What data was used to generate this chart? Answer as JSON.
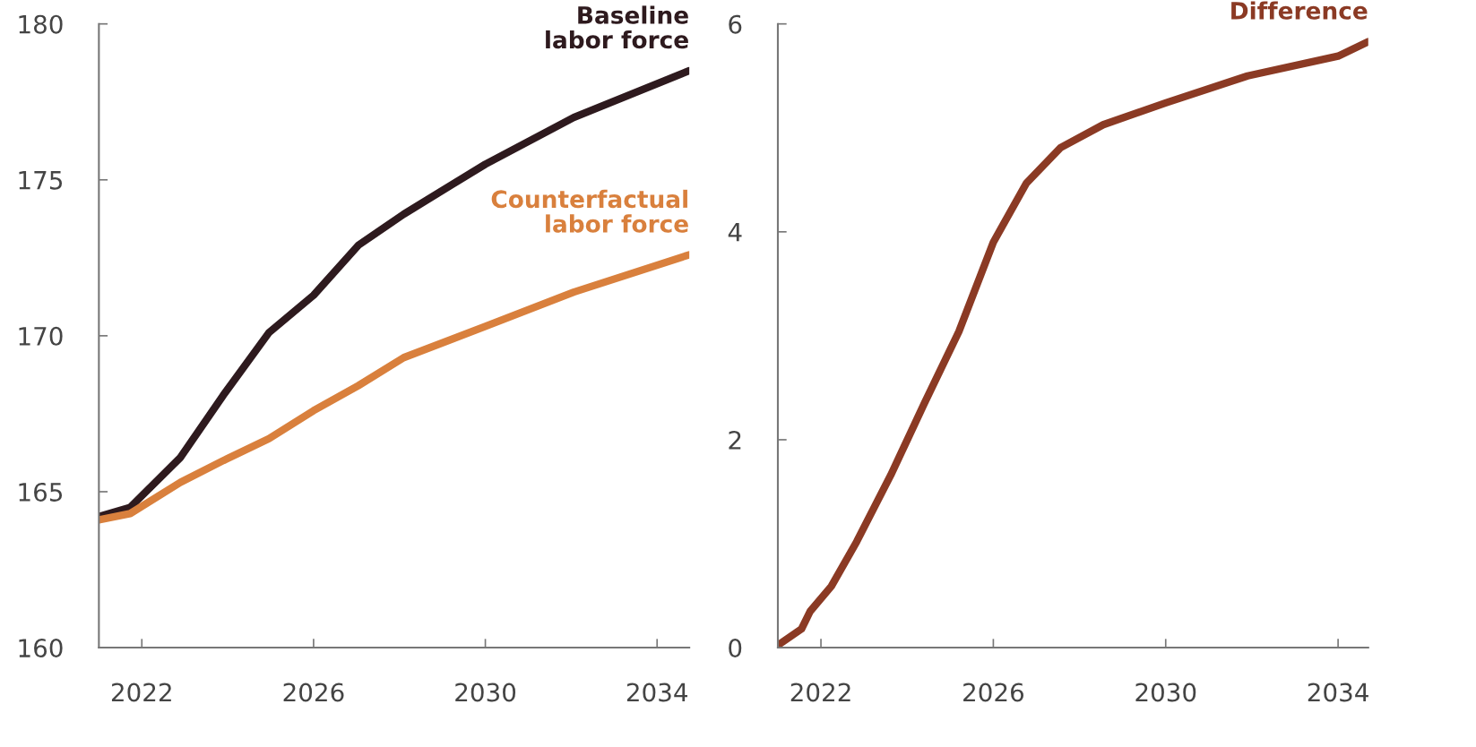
{
  "chart_data": [
    {
      "type": "line",
      "xlim": [
        2021.0,
        2034.75
      ],
      "xticks": [
        2022,
        2026,
        2030,
        2034
      ],
      "ylim": [
        160,
        180
      ],
      "yticks": [
        160,
        165,
        170,
        175,
        180
      ],
      "grid": false,
      "legend": false,
      "series": [
        {
          "name": "Baseline\nlabor force",
          "color": "#2e1a1e",
          "x": [
            2021.0,
            2021.73,
            2022.9,
            2023.9,
            2024.96,
            2026.0,
            2027.04,
            2028.1,
            2030.0,
            2032.06,
            2034.75
          ],
          "values": [
            164.2,
            164.5,
            166.1,
            168.1,
            170.1,
            171.3,
            172.9,
            173.9,
            175.5,
            177.0,
            178.5
          ]
        },
        {
          "name": "Counterfactual\nlabor force",
          "color": "#d9803d",
          "x": [
            2021.0,
            2021.73,
            2022.9,
            2023.9,
            2024.96,
            2026.0,
            2027.04,
            2028.1,
            2030.0,
            2032.06,
            2034.75
          ],
          "values": [
            164.1,
            164.3,
            165.3,
            166.0,
            166.7,
            167.6,
            168.4,
            169.3,
            170.3,
            171.4,
            172.6
          ]
        }
      ]
    },
    {
      "type": "line",
      "xlim": [
        2021.0,
        2034.7
      ],
      "xticks": [
        2022,
        2026,
        2030,
        2034
      ],
      "ylim": [
        0,
        6
      ],
      "yticks": [
        0,
        2,
        4,
        6
      ],
      "grid": false,
      "legend": false,
      "series": [
        {
          "name": "Difference",
          "color": "#8b3a24",
          "x": [
            2021.06,
            2021.55,
            2021.75,
            2022.24,
            2022.83,
            2023.62,
            2024.4,
            2025.2,
            2026.0,
            2026.77,
            2027.56,
            2028.55,
            2030.0,
            2031.9,
            2034.0,
            2034.7
          ],
          "values": [
            0.04,
            0.18,
            0.35,
            0.59,
            1.02,
            1.66,
            2.35,
            3.04,
            3.9,
            4.47,
            4.81,
            5.03,
            5.24,
            5.5,
            5.69,
            5.83
          ]
        }
      ]
    }
  ]
}
